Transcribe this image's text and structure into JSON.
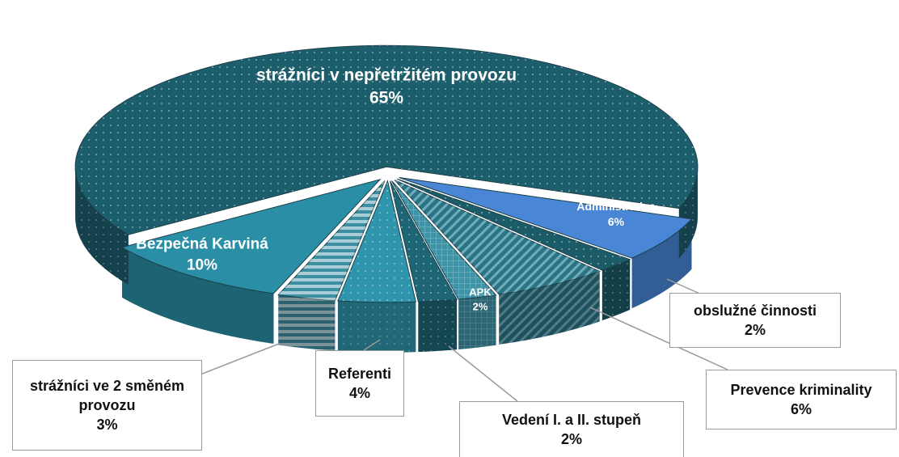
{
  "chart_data": {
    "type": "pie",
    "categories": [
      "Administrativa",
      "obslužné činnosti",
      "Prevence kriminality",
      "Vedení I. a II. stupeň",
      "APK",
      "Referenti",
      "strážníci ve 2 směném provozu",
      "Bezpečná Karviná",
      "strážníci v nepřetržitém provozu"
    ],
    "values": [
      6,
      2,
      6,
      2,
      2,
      4,
      3,
      10,
      65
    ],
    "value_labels": [
      "6%",
      "2%",
      "6%",
      "2%",
      "2%",
      "4%",
      "3%",
      "10%",
      "65%"
    ],
    "colors": [
      "#4a86d6",
      "#1c5b68",
      "#2a7486",
      "#3f93a6",
      "#1e6676",
      "#2f95ad",
      "#3f8fa3",
      "#2a8ea6",
      "#1d5e6c"
    ]
  }
}
